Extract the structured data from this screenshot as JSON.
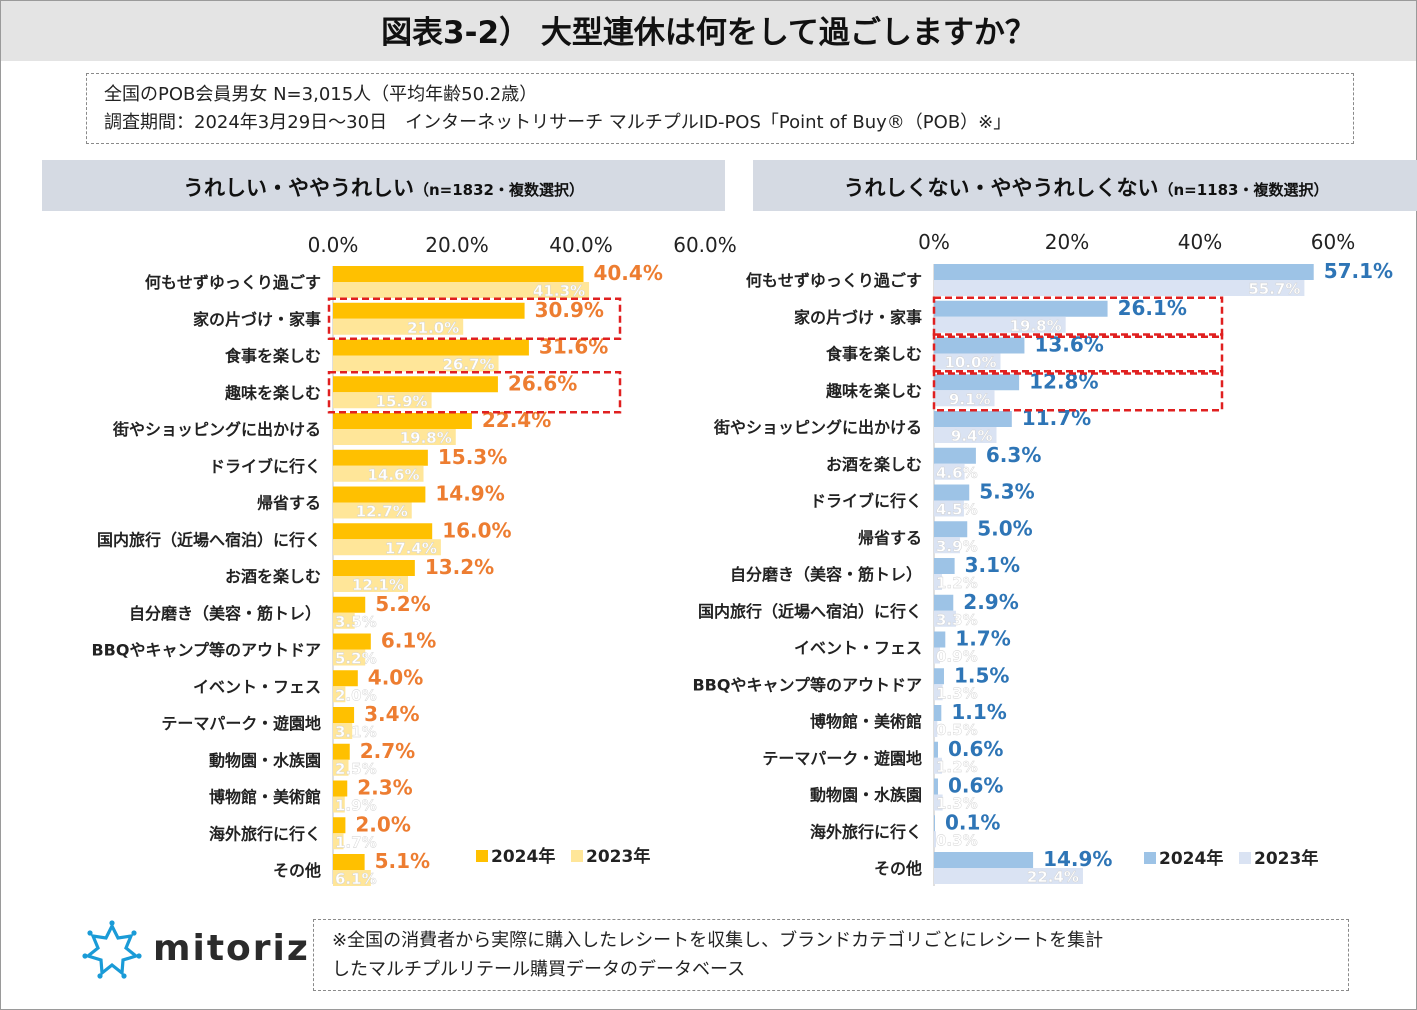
{
  "title": "図表3-2） 大型連休は何をして過ごしますか？",
  "info": {
    "line1": "全国のPOB会員男女 N=3,015人（平均年齢50.2歳）",
    "line2": "調査期間：2024年3月29日～30日　インターネットリサーチ マルチプルID-POS「Point of Buy®（POB）※」"
  },
  "footnote": {
    "line1": "※全国の消費者から実際に購入したレシートを収集し、ブランドカテゴリごとにレシートを集計",
    "line2": "したマルチプルリテール購買データのデータベース"
  },
  "logo": {
    "text": "mitoriz",
    "icon": "mitoriz-logo-icon"
  },
  "colors": {
    "left_2024": "#ffc000",
    "left_2023": "#ffe699",
    "left_label": "#ed7d31",
    "right_2024": "#9dc3e6",
    "right_2023": "#dae3f3",
    "right_label": "#2e75b6",
    "highlight": "#e02020"
  },
  "chart_data": [
    {
      "type": "bar",
      "orientation": "horizontal",
      "title": "うれしい・ややうれしい",
      "subtitle": "（n=1832・複数選択）",
      "xlim": [
        0,
        60
      ],
      "ticks": [
        "0.0%",
        "20.0%",
        "40.0%",
        "60.0%"
      ],
      "tick_values": [
        0,
        20,
        40,
        60
      ],
      "categories": [
        "何もせずゆっくり過ごす",
        "家の片づけ・家事",
        "食事を楽しむ",
        "趣味を楽しむ",
        "街やショッピングに出かける",
        "ドライブに行く",
        "帰省する",
        "国内旅行（近場へ宿泊）に行く",
        "お酒を楽しむ",
        "自分磨き（美容・筋トレ）",
        "BBQやキャンプ等のアウトドア",
        "イベント・フェス",
        "テーマパーク・遊園地",
        "動物園・水族園",
        "博物館・美術館",
        "海外旅行に行く",
        "その他"
      ],
      "series": [
        {
          "name": "2024年",
          "values": [
            40.4,
            30.9,
            31.6,
            26.6,
            22.4,
            15.3,
            14.9,
            16.0,
            13.2,
            5.2,
            6.1,
            4.0,
            3.4,
            2.7,
            2.3,
            2.0,
            5.1
          ],
          "labels": [
            "40.4%",
            "30.9%",
            "31.6%",
            "26.6%",
            "22.4%",
            "15.3%",
            "14.9%",
            "16.0%",
            "13.2%",
            "5.2%",
            "6.1%",
            "4.0%",
            "3.4%",
            "2.7%",
            "2.3%",
            "2.0%",
            "5.1%"
          ]
        },
        {
          "name": "2023年",
          "values": [
            41.3,
            21.0,
            26.7,
            15.9,
            19.8,
            14.6,
            12.7,
            17.4,
            12.1,
            3.5,
            5.2,
            2.0,
            3.1,
            2.5,
            1.9,
            1.7,
            6.1
          ],
          "labels": [
            "41.3%",
            "21.0%",
            "26.7%",
            "15.9%",
            "19.8%",
            "14.6%",
            "12.7%",
            "17.4%",
            "12.1%",
            "3.5%",
            "5.2%",
            "2.0%",
            "3.1%",
            "2.5%",
            "1.9%",
            "1.7%",
            "6.1%"
          ]
        }
      ],
      "highlighted": [
        1,
        3
      ],
      "legend": [
        "2024年",
        "2023年"
      ]
    },
    {
      "type": "bar",
      "orientation": "horizontal",
      "title": "うれしくない・ややうれしくない",
      "subtitle": "（n=1183・複数選択）",
      "xlim": [
        0,
        60
      ],
      "ticks": [
        "0%",
        "20%",
        "40%",
        "60%"
      ],
      "tick_values": [
        0,
        20,
        40,
        60
      ],
      "categories": [
        "何もせずゆっくり過ごす",
        "家の片づけ・家事",
        "食事を楽しむ",
        "趣味を楽しむ",
        "街やショッピングに出かける",
        "お酒を楽しむ",
        "ドライブに行く",
        "帰省する",
        "自分磨き（美容・筋トレ）",
        "国内旅行（近場へ宿泊）に行く",
        "イベント・フェス",
        "BBQやキャンプ等のアウトドア",
        "博物館・美術館",
        "テーマパーク・遊園地",
        "動物園・水族園",
        "海外旅行に行く",
        "その他"
      ],
      "series": [
        {
          "name": "2024年",
          "values": [
            57.1,
            26.1,
            13.6,
            12.8,
            11.7,
            6.3,
            5.3,
            5.0,
            3.1,
            2.9,
            1.7,
            1.5,
            1.1,
            0.6,
            0.6,
            0.1,
            14.9
          ],
          "labels": [
            "57.1%",
            "26.1%",
            "13.6%",
            "12.8%",
            "11.7%",
            "6.3%",
            "5.3%",
            "5.0%",
            "3.1%",
            "2.9%",
            "1.7%",
            "1.5%",
            "1.1%",
            "0.6%",
            "0.6%",
            "0.1%",
            "14.9%"
          ]
        },
        {
          "name": "2023年",
          "values": [
            55.7,
            19.8,
            10.0,
            9.1,
            9.4,
            4.6,
            4.5,
            3.9,
            1.2,
            3.3,
            0.9,
            1.3,
            0.5,
            1.2,
            1.3,
            0.3,
            22.4
          ],
          "labels": [
            "55.7%",
            "19.8%",
            "10.0%",
            "9.1%",
            "9.4%",
            "4.6%",
            "4.5%",
            "3.9%",
            "1.2%",
            "3.3%",
            "0.9%",
            "1.3%",
            "0.5%",
            "1.2%",
            "1.3%",
            "0.3%",
            "22.4%"
          ]
        }
      ],
      "highlighted": [
        1,
        2,
        3
      ],
      "legend": [
        "2024年",
        "2023年"
      ]
    }
  ]
}
